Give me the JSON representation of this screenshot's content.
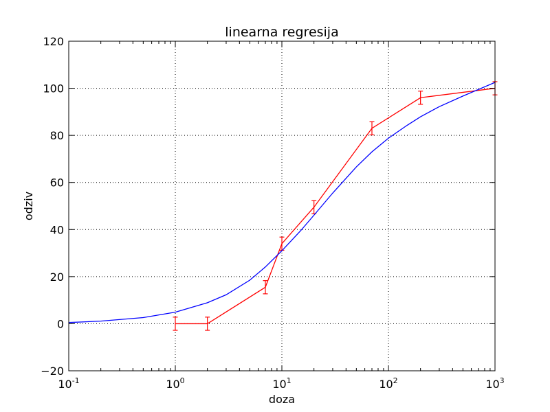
{
  "chart_data": {
    "type": "line",
    "title": "linearna regresija",
    "xlabel": "doza",
    "ylabel": "odziv",
    "xscale": "log",
    "xlim": [
      0.1,
      1000
    ],
    "ylim": [
      -20,
      120
    ],
    "grid": true,
    "x_ticks": [
      {
        "value": 0.1,
        "base": "10",
        "exp": "-1"
      },
      {
        "value": 1,
        "base": "10",
        "exp": "0"
      },
      {
        "value": 10,
        "base": "10",
        "exp": "1"
      },
      {
        "value": 100,
        "base": "10",
        "exp": "2"
      },
      {
        "value": 1000,
        "base": "10",
        "exp": "3"
      }
    ],
    "y_ticks": [
      -20,
      0,
      20,
      40,
      60,
      80,
      100,
      120
    ],
    "y_tick_labels": [
      "−20",
      "0",
      "20",
      "40",
      "60",
      "80",
      "100",
      "120"
    ],
    "series": [
      {
        "kind": "errorbar",
        "color": "#ff0000",
        "x": [
          1,
          2,
          7,
          10,
          20,
          70,
          200,
          1000
        ],
        "y": [
          0,
          0,
          15.5,
          34,
          49.5,
          83,
          96,
          100
        ],
        "yerr": [
          2.8,
          2.8,
          2.8,
          2.8,
          2.8,
          2.8,
          2.8,
          2.8
        ]
      },
      {
        "kind": "fit",
        "color": "#0000ff",
        "x": [
          0.1,
          0.2,
          0.5,
          1,
          2,
          3,
          5,
          7,
          10,
          15,
          20,
          30,
          50,
          70,
          100,
          150,
          200,
          300,
          500,
          1000
        ],
        "y": [
          0.5,
          1.1,
          2.6,
          4.9,
          8.9,
          12.3,
          18.5,
          24.1,
          31,
          39.5,
          46.1,
          55.5,
          66.6,
          73,
          78.8,
          84.3,
          87.9,
          92.2,
          96.7,
          102.5
        ]
      }
    ]
  }
}
